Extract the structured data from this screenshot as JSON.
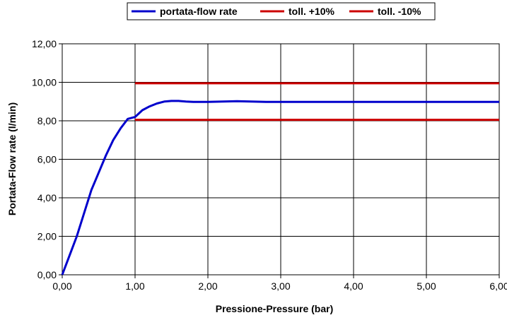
{
  "chart_data": {
    "type": "line",
    "title": "",
    "xlabel": "Pressione-Pressure (bar)",
    "ylabel": "Portata-Flow rate (l/min)",
    "xlim": [
      0,
      6
    ],
    "ylim": [
      0,
      12
    ],
    "x_ticks": [
      "0,00",
      "1,00",
      "2,00",
      "3,00",
      "4,00",
      "5,00",
      "6,00"
    ],
    "y_ticks": [
      "0,00",
      "2,00",
      "4,00",
      "6,00",
      "8,00",
      "10,00",
      "12,00"
    ],
    "grid": "vertical and horizontal major gridlines",
    "legend_position": "top-center",
    "series": [
      {
        "name": "portata-flow rate",
        "color": "#0000cc",
        "x": [
          0,
          0.1,
          0.2,
          0.3,
          0.4,
          0.5,
          0.6,
          0.7,
          0.8,
          0.9,
          1.0,
          1.1,
          1.2,
          1.3,
          1.4,
          1.5,
          1.6,
          1.7,
          1.8,
          2.0,
          2.2,
          2.4,
          2.6,
          2.8,
          3.0,
          4.0,
          5.0,
          6.0
        ],
        "y": [
          0,
          1.0,
          2.0,
          3.2,
          4.4,
          5.3,
          6.2,
          7.0,
          7.6,
          8.1,
          8.2,
          8.55,
          8.75,
          8.9,
          9.0,
          9.03,
          9.03,
          9.0,
          8.98,
          8.98,
          9.0,
          9.02,
          9.0,
          8.98,
          8.98,
          8.98,
          8.98,
          8.98
        ]
      },
      {
        "name": "toll. +10%",
        "color": "#cc0000",
        "x": [
          1.0,
          6.0
        ],
        "y": [
          9.95,
          9.95
        ]
      },
      {
        "name": "toll. -10%",
        "color": "#cc0000",
        "x": [
          1.0,
          6.0
        ],
        "y": [
          8.05,
          8.05
        ]
      }
    ]
  }
}
